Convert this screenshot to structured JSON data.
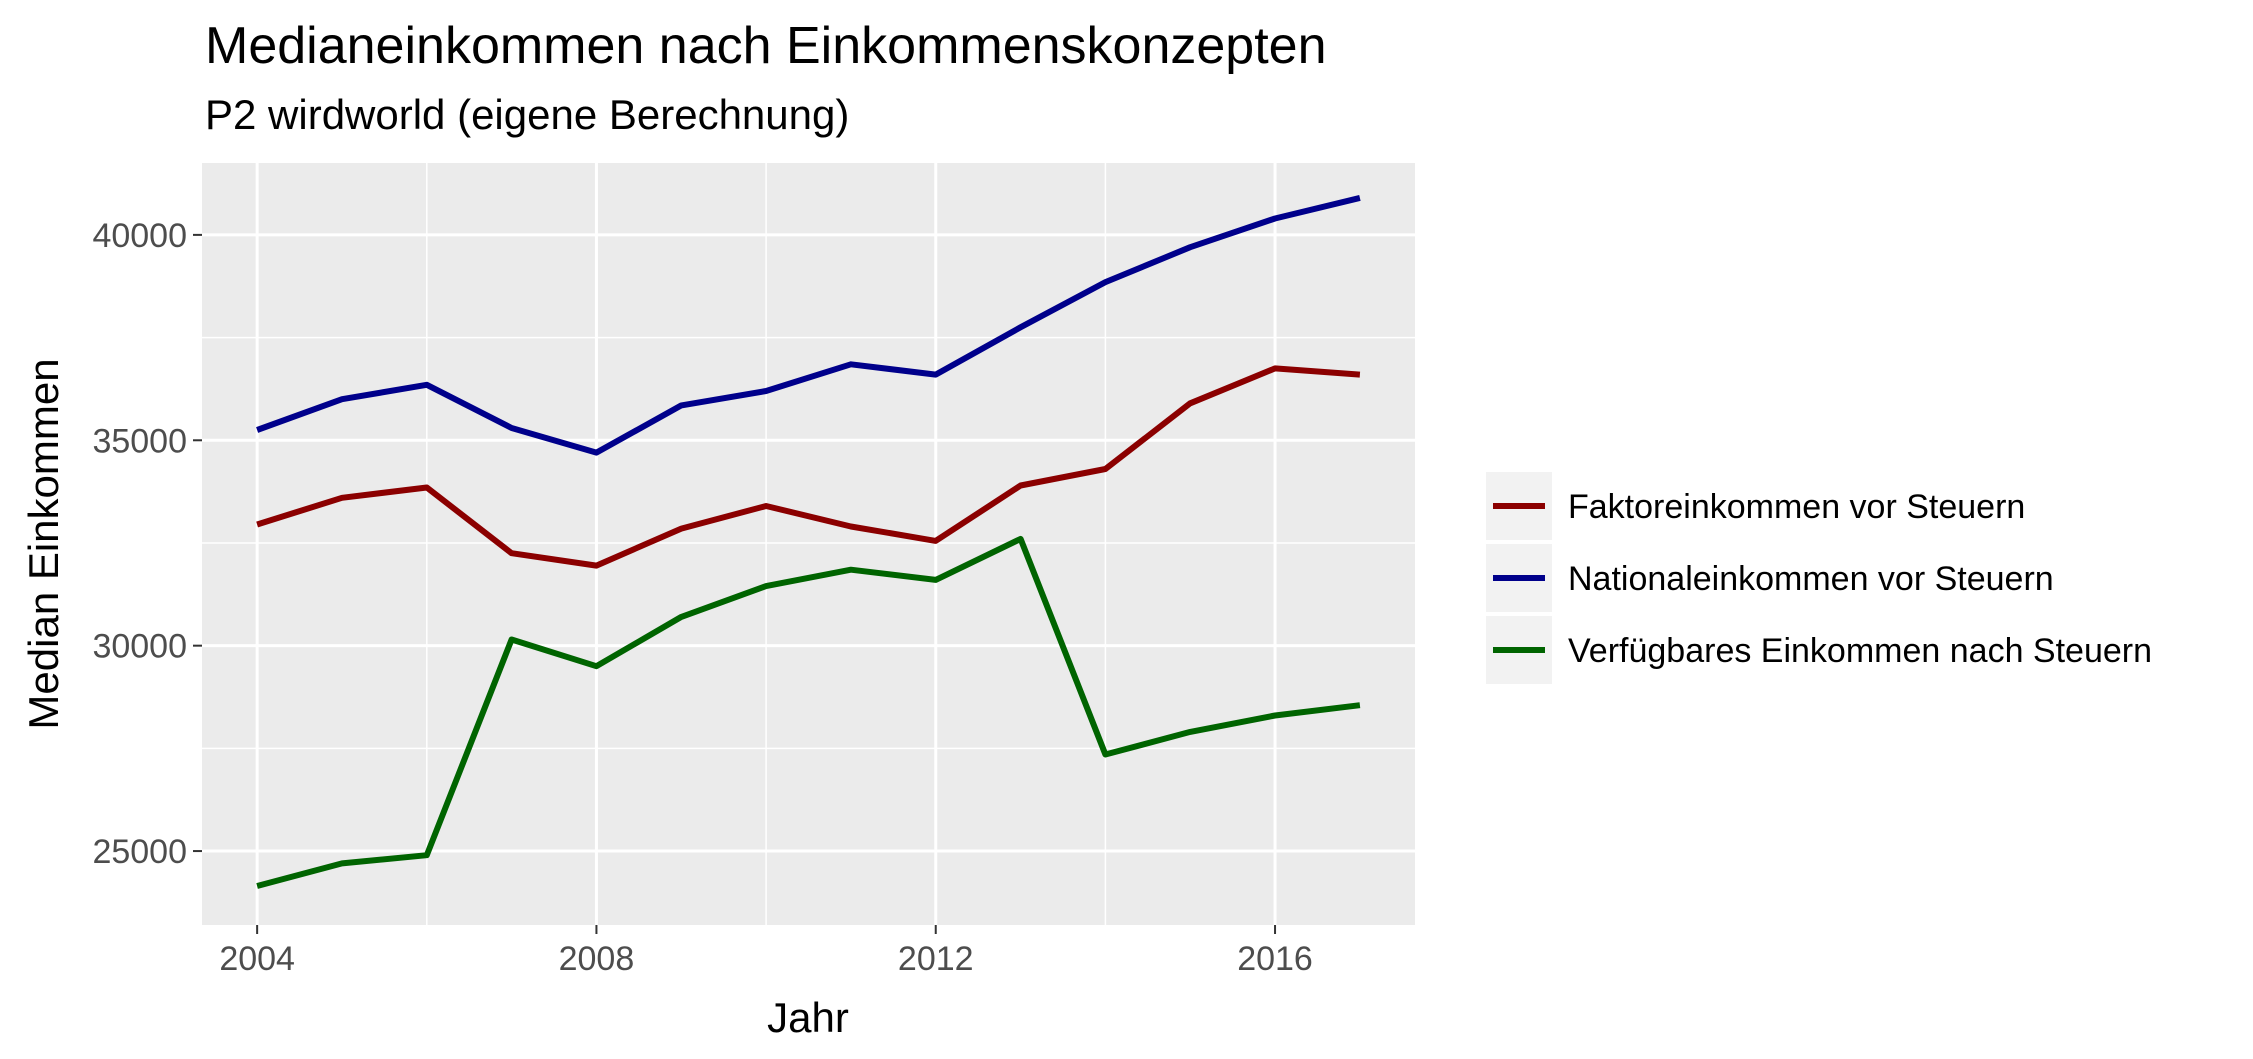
{
  "chart_data": {
    "type": "line",
    "title": "Medianeinkommen nach Einkommenskonzepten",
    "subtitle": "P2 wirdworld (eigene Berechnung)",
    "xlabel": "Jahr",
    "ylabel": "Median Einkommen",
    "x": [
      2004,
      2005,
      2006,
      2007,
      2008,
      2009,
      2010,
      2011,
      2012,
      2013,
      2014,
      2015,
      2016,
      2017
    ],
    "xlim": [
      2003.35,
      2017.65
    ],
    "ylim": [
      23200,
      41750
    ],
    "x_ticks": [
      2004,
      2008,
      2012,
      2016
    ],
    "x_tick_labels": [
      "2004",
      "2008",
      "2012",
      "2016"
    ],
    "y_ticks": [
      25000,
      30000,
      35000,
      40000
    ],
    "y_tick_labels": [
      "25000",
      "30000",
      "35000",
      "40000"
    ],
    "grid": true,
    "legend_position": "right",
    "background_color": "#ebebeb",
    "series": [
      {
        "name": "Faktoreinkommen vor Steuern",
        "color": "#8b0000",
        "values": [
          32950,
          33600,
          33850,
          32250,
          31950,
          32850,
          33400,
          32900,
          32550,
          33900,
          34300,
          35900,
          36750,
          36600
        ]
      },
      {
        "name": "Nationaleinkommen vor Steuern",
        "color": "#00008b",
        "values": [
          35250,
          36000,
          36350,
          35300,
          34700,
          35850,
          36200,
          36850,
          36600,
          37750,
          38850,
          39700,
          40400,
          40900
        ]
      },
      {
        "name": "Verfügbares Einkommen nach Steuern",
        "color": "#006400",
        "values": [
          24150,
          24700,
          24900,
          30150,
          29500,
          30700,
          31450,
          31850,
          31600,
          32600,
          27350,
          27900,
          28300,
          28550
        ]
      }
    ]
  }
}
